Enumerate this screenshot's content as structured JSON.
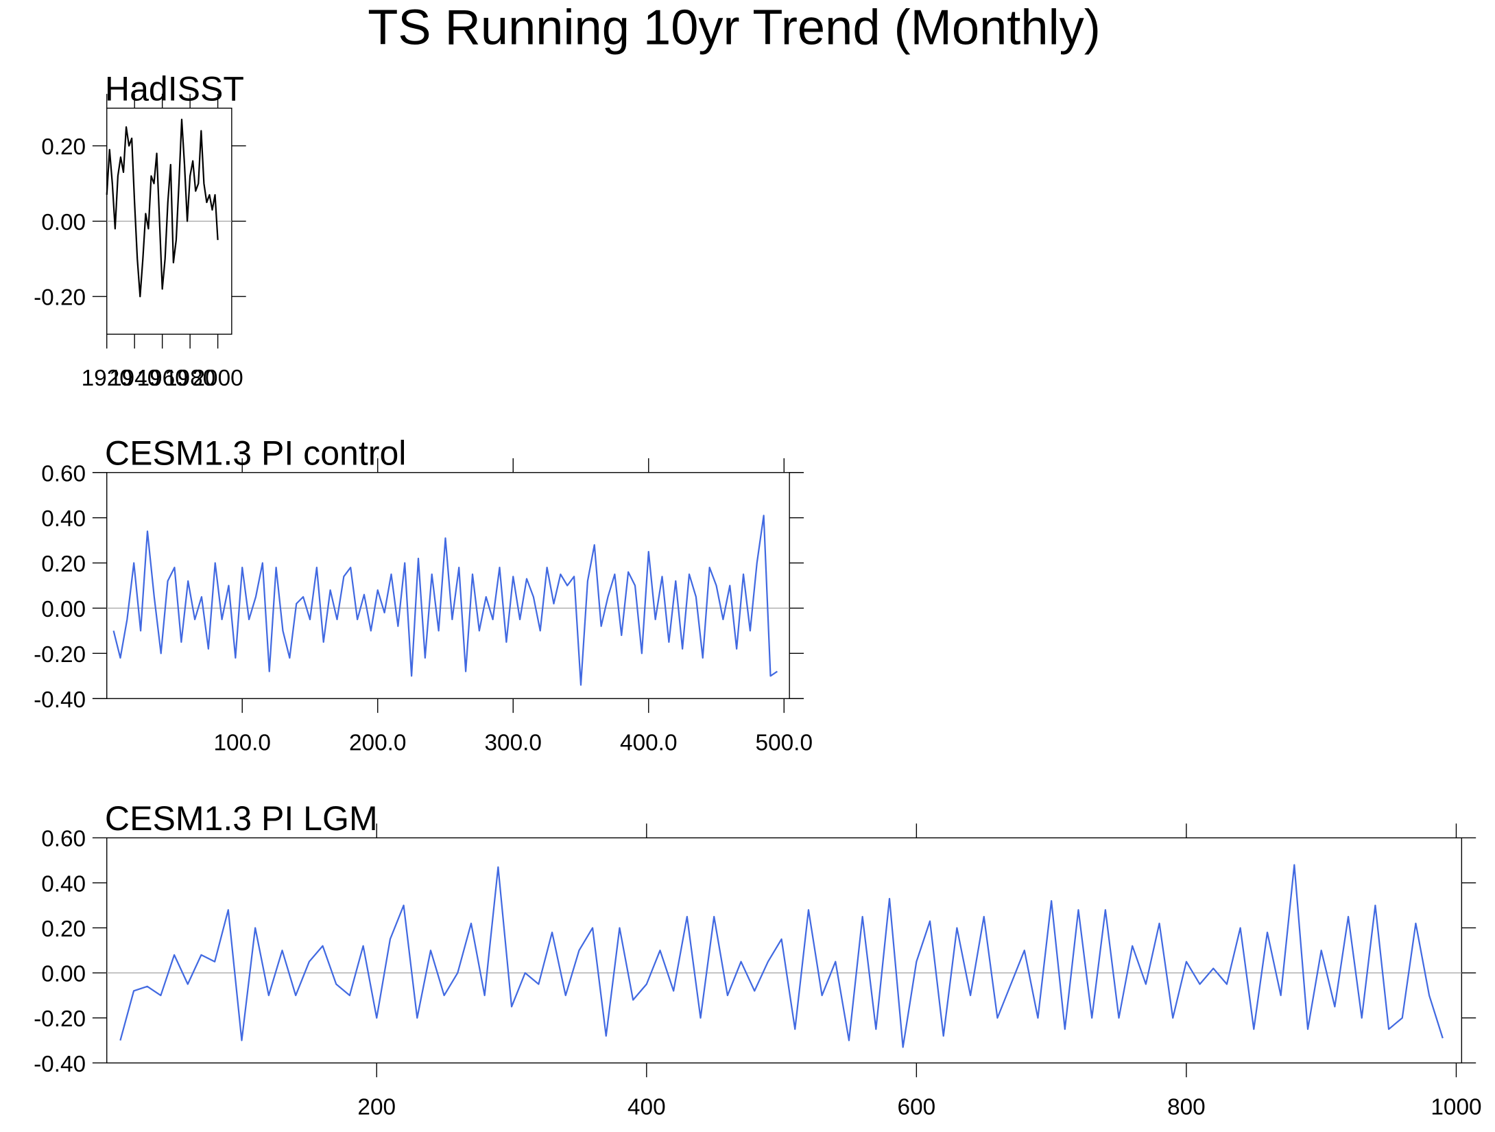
{
  "title": "TS Running 10yr Trend (Monthly)",
  "chart_data": [
    {
      "type": "line",
      "title": "HadISST",
      "color": "#000000",
      "ref_line": 0,
      "x": [
        1920,
        1922,
        1924,
        1926,
        1928,
        1930,
        1932,
        1934,
        1936,
        1938,
        1940,
        1942,
        1944,
        1946,
        1948,
        1950,
        1952,
        1954,
        1956,
        1958,
        1960,
        1962,
        1964,
        1966,
        1968,
        1970,
        1972,
        1974,
        1976,
        1978,
        1980,
        1982,
        1984,
        1986,
        1988,
        1990,
        1992,
        1994,
        1996,
        1998,
        2000
      ],
      "values": [
        0.07,
        0.19,
        0.1,
        -0.02,
        0.12,
        0.17,
        0.13,
        0.25,
        0.2,
        0.22,
        0.05,
        -0.1,
        -0.2,
        -0.1,
        0.02,
        -0.02,
        0.12,
        0.1,
        0.18,
        0.0,
        -0.18,
        -0.1,
        0.05,
        0.15,
        -0.11,
        -0.05,
        0.1,
        0.27,
        0.15,
        0.0,
        0.12,
        0.16,
        0.08,
        0.1,
        0.24,
        0.1,
        0.05,
        0.07,
        0.03,
        0.07,
        -0.05
      ],
      "xlim": [
        1920,
        2010
      ],
      "xticks": [
        1920,
        1940,
        1960,
        1980,
        2000
      ],
      "ylim": [
        -0.3,
        0.3
      ],
      "yticks": [
        {
          "value": -0.2,
          "label": "-0.20"
        },
        {
          "value": 0,
          "label": "0.00"
        },
        {
          "value": 0.2,
          "label": "0.20"
        }
      ]
    },
    {
      "type": "line",
      "title": "CESM1.3 PI control",
      "color": "#4169e1",
      "ref_line": 0,
      "x": [
        5,
        10,
        15,
        20,
        25,
        30,
        35,
        40,
        45,
        50,
        55,
        60,
        65,
        70,
        75,
        80,
        85,
        90,
        95,
        100,
        105,
        110,
        115,
        120,
        125,
        130,
        135,
        140,
        145,
        150,
        155,
        160,
        165,
        170,
        175,
        180,
        185,
        190,
        195,
        200,
        205,
        210,
        215,
        220,
        225,
        230,
        235,
        240,
        245,
        250,
        255,
        260,
        265,
        270,
        275,
        280,
        285,
        290,
        295,
        300,
        305,
        310,
        315,
        320,
        325,
        330,
        335,
        340,
        345,
        350,
        355,
        360,
        365,
        370,
        375,
        380,
        385,
        390,
        395,
        400,
        405,
        410,
        415,
        420,
        425,
        430,
        435,
        440,
        445,
        450,
        455,
        460,
        465,
        470,
        475,
        480,
        485,
        490,
        495
      ],
      "values": [
        -0.1,
        -0.22,
        -0.05,
        0.2,
        -0.1,
        0.34,
        0.05,
        -0.2,
        0.12,
        0.18,
        -0.15,
        0.12,
        -0.05,
        0.05,
        -0.18,
        0.2,
        -0.05,
        0.1,
        -0.22,
        0.18,
        -0.05,
        0.05,
        0.2,
        -0.28,
        0.18,
        -0.1,
        -0.22,
        0.02,
        0.05,
        -0.05,
        0.18,
        -0.15,
        0.08,
        -0.05,
        0.14,
        0.18,
        -0.05,
        0.06,
        -0.1,
        0.08,
        -0.02,
        0.15,
        -0.08,
        0.2,
        -0.3,
        0.22,
        -0.22,
        0.15,
        -0.1,
        0.31,
        -0.05,
        0.18,
        -0.28,
        0.15,
        -0.1,
        0.05,
        -0.05,
        0.18,
        -0.15,
        0.14,
        -0.05,
        0.13,
        0.05,
        -0.1,
        0.18,
        0.02,
        0.15,
        0.1,
        0.14,
        -0.34,
        0.12,
        0.28,
        -0.08,
        0.05,
        0.15,
        -0.12,
        0.16,
        0.1,
        -0.2,
        0.25,
        -0.05,
        0.14,
        -0.15,
        0.12,
        -0.18,
        0.15,
        0.05,
        -0.22,
        0.18,
        0.1,
        -0.05,
        0.1,
        -0.18,
        0.15,
        -0.1,
        0.2,
        0.41,
        -0.3,
        -0.28
      ],
      "xlim": [
        0,
        504
      ],
      "xticks": [
        {
          "value": 100,
          "label": "100.0"
        },
        {
          "value": 200,
          "label": "200.0"
        },
        {
          "value": 300,
          "label": "300.0"
        },
        {
          "value": 400,
          "label": "400.0"
        },
        {
          "value": 500,
          "label": "500.0"
        }
      ],
      "ylim": [
        -0.4,
        0.6
      ],
      "yticks": [
        {
          "value": -0.4,
          "label": "-0.40"
        },
        {
          "value": -0.2,
          "label": "-0.20"
        },
        {
          "value": 0,
          "label": "0.00"
        },
        {
          "value": 0.2,
          "label": "0.20"
        },
        {
          "value": 0.4,
          "label": "0.40"
        },
        {
          "value": 0.6,
          "label": "0.60"
        }
      ]
    },
    {
      "type": "line",
      "title": "CESM1.3 PI LGM",
      "color": "#4169e1",
      "ref_line": 0,
      "x": [
        10,
        20,
        30,
        40,
        50,
        60,
        70,
        80,
        90,
        100,
        110,
        120,
        130,
        140,
        150,
        160,
        170,
        180,
        190,
        200,
        210,
        220,
        230,
        240,
        250,
        260,
        270,
        280,
        290,
        300,
        310,
        320,
        330,
        340,
        350,
        360,
        370,
        380,
        390,
        400,
        410,
        420,
        430,
        440,
        450,
        460,
        470,
        480,
        490,
        500,
        510,
        520,
        530,
        540,
        550,
        560,
        570,
        580,
        590,
        600,
        610,
        620,
        630,
        640,
        650,
        660,
        670,
        680,
        690,
        700,
        710,
        720,
        730,
        740,
        750,
        760,
        770,
        780,
        790,
        800,
        810,
        820,
        830,
        840,
        850,
        860,
        870,
        880,
        890,
        900,
        910,
        920,
        930,
        940,
        950,
        960,
        970,
        980,
        990
      ],
      "values": [
        -0.3,
        -0.08,
        -0.06,
        -0.1,
        0.08,
        -0.05,
        0.08,
        0.05,
        0.28,
        -0.3,
        0.2,
        -0.1,
        0.1,
        -0.1,
        0.05,
        0.12,
        -0.05,
        -0.1,
        0.12,
        -0.2,
        0.15,
        0.3,
        -0.2,
        0.1,
        -0.1,
        0.0,
        0.22,
        -0.1,
        0.47,
        -0.15,
        0.0,
        -0.05,
        0.18,
        -0.1,
        0.1,
        0.2,
        -0.28,
        0.2,
        -0.12,
        -0.05,
        0.1,
        -0.08,
        0.25,
        -0.2,
        0.25,
        -0.1,
        0.05,
        -0.08,
        0.05,
        0.15,
        -0.25,
        0.28,
        -0.1,
        0.05,
        -0.3,
        0.25,
        -0.25,
        0.33,
        -0.33,
        0.05,
        0.23,
        -0.28,
        0.2,
        -0.1,
        0.25,
        -0.2,
        -0.05,
        0.1,
        -0.2,
        0.32,
        -0.25,
        0.28,
        -0.2,
        0.28,
        -0.2,
        0.12,
        -0.05,
        0.22,
        -0.2,
        0.05,
        -0.05,
        0.02,
        -0.05,
        0.2,
        -0.25,
        0.18,
        -0.1,
        0.48,
        -0.25,
        0.1,
        -0.15,
        0.25,
        -0.2,
        0.3,
        -0.25,
        -0.2,
        0.22,
        -0.1,
        -0.29
      ],
      "xlim": [
        0,
        1004
      ],
      "xticks": [
        200,
        400,
        600,
        800,
        1000
      ],
      "ylim": [
        -0.4,
        0.6
      ],
      "yticks": [
        {
          "value": -0.4,
          "label": "-0.40"
        },
        {
          "value": -0.2,
          "label": "-0.20"
        },
        {
          "value": 0,
          "label": "0.00"
        },
        {
          "value": 0.2,
          "label": "0.20"
        },
        {
          "value": 0.4,
          "label": "0.40"
        },
        {
          "value": 0.6,
          "label": "0.60"
        }
      ]
    }
  ]
}
